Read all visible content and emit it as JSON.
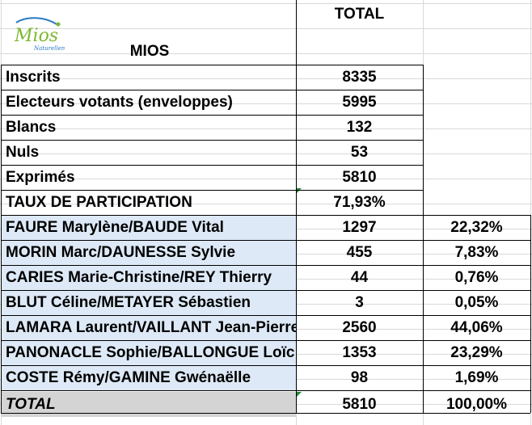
{
  "header": {
    "total_label": "TOTAL",
    "commune": "MIOS",
    "logo": {
      "word": "Mios",
      "tagline": "Naturellement",
      "icon": "mios-logo-icon"
    }
  },
  "summary": [
    {
      "label": "Inscrits",
      "value": "8335"
    },
    {
      "label": "Electeurs votants (enveloppes)",
      "value": "5995"
    },
    {
      "label": "Blancs",
      "value": "132"
    },
    {
      "label": "Nuls",
      "value": "53"
    },
    {
      "label": "Exprimés",
      "value": "5810"
    },
    {
      "label": "TAUX DE PARTICIPATION",
      "value": "71,93%"
    }
  ],
  "candidates": [
    {
      "name": "FAURE Marylène/BAUDE Vital",
      "votes": "1297",
      "percent": "22,32%"
    },
    {
      "name": "MORIN Marc/DAUNESSE Sylvie",
      "votes": "455",
      "percent": "7,83%"
    },
    {
      "name": "CARIES Marie-Christine/REY Thierry",
      "votes": "44",
      "percent": "0,76%"
    },
    {
      "name": "BLUT Céline/METAYER Sébastien",
      "votes": "3",
      "percent": "0,05%"
    },
    {
      "name": "LAMARA Laurent/VAILLANT Jean-Pierre",
      "votes": "2560",
      "percent": "44,06%"
    },
    {
      "name": "PANONACLE Sophie/BALLONGUE Loïc",
      "votes": "1353",
      "percent": "23,29%"
    },
    {
      "name": "COSTE Rémy/GAMINE Gwénaëlle",
      "votes": "98",
      "percent": "1,69%"
    }
  ],
  "total_row": {
    "label": "TOTAL",
    "votes": "5810",
    "percent": "100,00%"
  },
  "colors": {
    "candidate_fill": "#dde9f6",
    "total_fill": "#d4d4d4",
    "gridline": "#d9d9d9",
    "indicator": "#1e8a3a",
    "logo_green": "#7cb82f",
    "logo_blue": "#2a7bc4"
  }
}
